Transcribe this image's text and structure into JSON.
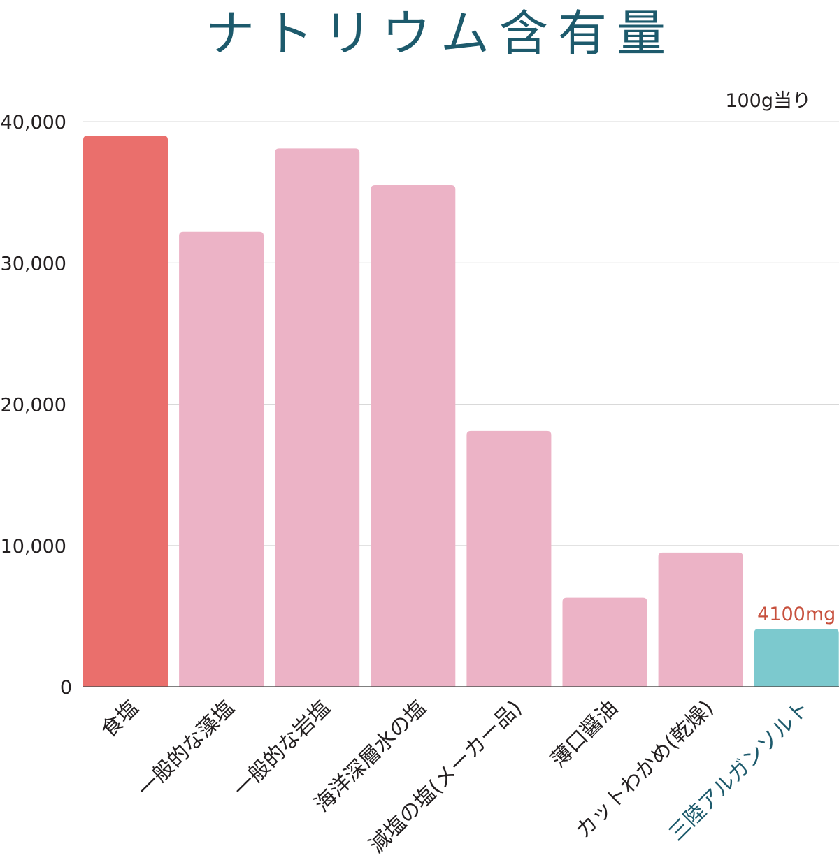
{
  "colors": {
    "title": "#1d5a6c",
    "bar_default": "#ecb3c6",
    "bar_first": "#ea6f6c",
    "bar_highlight": "#7cc9ce",
    "highlight_label": "#1d5a6c",
    "value_label": "#c7503d",
    "axis_text": "#231f20",
    "grid": "#d9d9d9"
  },
  "chart_data": {
    "type": "bar",
    "title": "ナトリウム含有量",
    "unit_note": "100g当り",
    "xlabel": "",
    "ylabel": "",
    "ylim": [
      0,
      40000
    ],
    "yticks": [
      0,
      10000,
      20000,
      30000,
      40000
    ],
    "ytick_labels": [
      "0",
      "10,000",
      "20,000",
      "30,000",
      "40,000"
    ],
    "grid": true,
    "categories": [
      "食塩",
      "一般的な藻塩",
      "一般的な岩塩",
      "海洋深層水の塩",
      "減塩の塩(メーカー品)",
      "薄口醤油",
      "カットわかめ(乾燥)",
      "三陸アルガンソルト"
    ],
    "values": [
      39000,
      32200,
      38100,
      35500,
      18100,
      6300,
      9500,
      4100
    ],
    "bar_colors": [
      "bar_first",
      "bar_default",
      "bar_default",
      "bar_default",
      "bar_default",
      "bar_default",
      "bar_default",
      "bar_highlight"
    ],
    "highlight_index": 7,
    "highlight_value_label": "4100mg"
  }
}
